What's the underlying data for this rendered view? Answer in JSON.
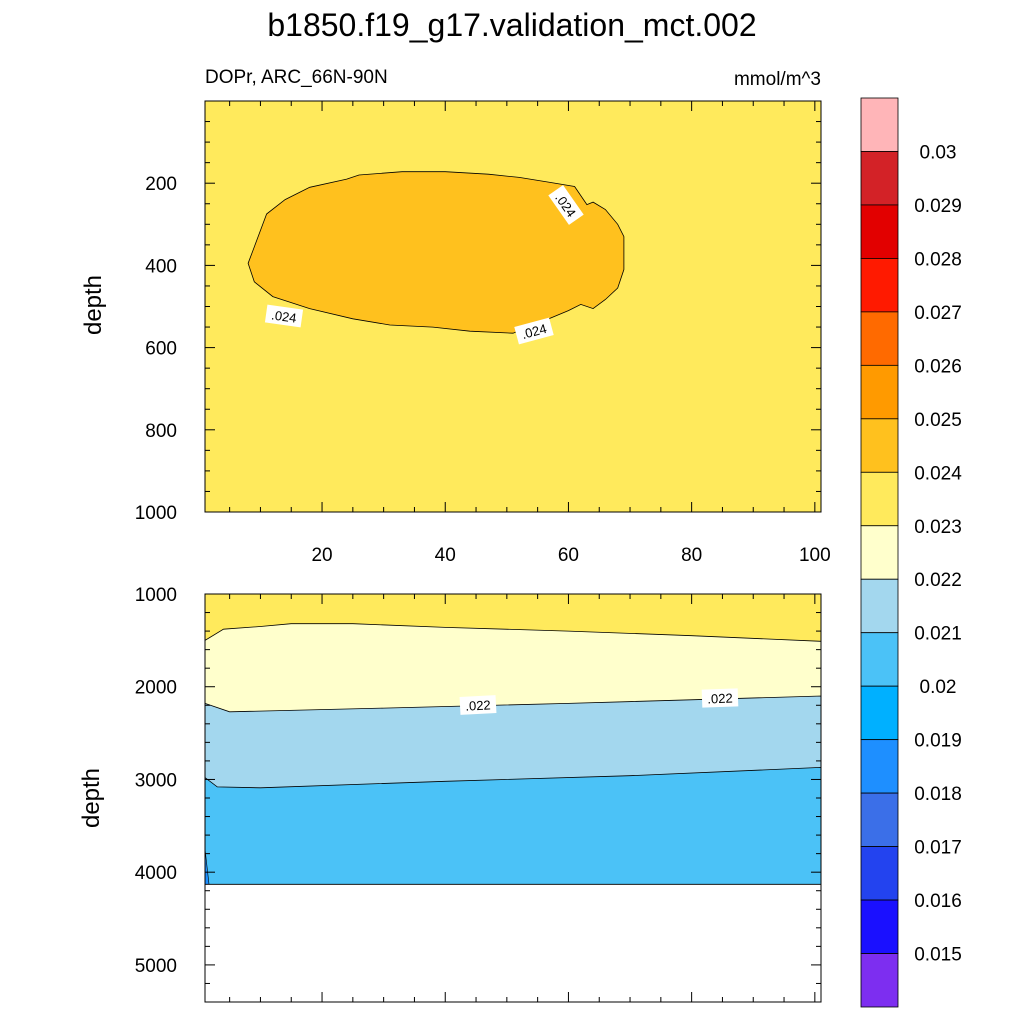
{
  "title": "b1850.f19_g17.validation_mct.002",
  "subtitle_left": "DOPr, ARC_66N-90N",
  "subtitle_right": "mmol/m^3",
  "chart_data": [
    {
      "type": "contour",
      "panel": "top",
      "xlabel": "",
      "ylabel": "depth",
      "xlim": [
        1,
        101
      ],
      "ylim": [
        1000,
        0
      ],
      "x_ticks": [
        "20",
        "40",
        "60",
        "80",
        "100"
      ],
      "y_ticks": [
        "200",
        "400",
        "600",
        "800",
        "1000"
      ],
      "background_value_range": [
        0.023,
        0.024
      ],
      "contour_labels": [
        ".024",
        ".024",
        ".024"
      ],
      "regions": [
        {
          "value_range": [
            0.024,
            0.025
          ],
          "boundary": [
            [
              11,
              275
            ],
            [
              14,
              240
            ],
            [
              18,
              210
            ],
            [
              24,
              190
            ],
            [
              26,
              180
            ],
            [
              33,
              172
            ],
            [
              40,
              172
            ],
            [
              47,
              178
            ],
            [
              52,
              186
            ],
            [
              57,
              198
            ],
            [
              61,
              208
            ],
            [
              63,
              252
            ],
            [
              64,
              246
            ],
            [
              66,
              264
            ],
            [
              68,
              300
            ],
            [
              69,
              330
            ],
            [
              69,
              410
            ],
            [
              68,
              455
            ],
            [
              66,
              483
            ],
            [
              64,
              505
            ],
            [
              62,
              495
            ],
            [
              60,
              510
            ],
            [
              56,
              535
            ],
            [
              51,
              565
            ],
            [
              44,
              560
            ],
            [
              38,
              550
            ],
            [
              31,
              545
            ],
            [
              25,
              530
            ],
            [
              18,
              505
            ],
            [
              12,
              476
            ],
            [
              9,
              440
            ],
            [
              8,
              395
            ],
            [
              9,
              355
            ]
          ]
        }
      ]
    },
    {
      "type": "contour",
      "panel": "bottom",
      "xlabel": "",
      "ylabel": "depth",
      "xlim": [
        1,
        101
      ],
      "ylim": [
        5400,
        1000
      ],
      "y_ticks": [
        "1000",
        "2000",
        "3000",
        "4000",
        "5000"
      ],
      "ocean_bottom_depth": 4130,
      "contour_labels": [
        ".022",
        ".022"
      ],
      "bands": [
        {
          "value_range": [
            0.023,
            0.024
          ],
          "top": [
            [
              1,
              1000
            ],
            [
              101,
              1000
            ]
          ]
        },
        {
          "value_range": [
            0.022,
            0.023
          ],
          "top": [
            [
              1,
              1500
            ],
            [
              4,
              1380
            ],
            [
              10,
              1350
            ],
            [
              15,
              1320
            ],
            [
              25,
              1320
            ],
            [
              40,
              1360
            ],
            [
              60,
              1400
            ],
            [
              80,
              1450
            ],
            [
              101,
              1510
            ]
          ]
        },
        {
          "value_range": [
            0.021,
            0.022
          ],
          "top": [
            [
              1,
              2180
            ],
            [
              5,
              2270
            ],
            [
              30,
              2230
            ],
            [
              60,
              2180
            ],
            [
              101,
              2100
            ]
          ]
        },
        {
          "value_range": [
            0.02,
            0.021
          ],
          "top": [
            [
              1,
              2980
            ],
            [
              3,
              3080
            ],
            [
              10,
              3090
            ],
            [
              40,
              3020
            ],
            [
              70,
              2960
            ],
            [
              101,
              2870
            ]
          ]
        }
      ]
    }
  ],
  "colorbar": {
    "labels": [
      "0.03",
      "0.029",
      "0.028",
      "0.027",
      "0.026",
      "0.025",
      "0.024",
      "0.023",
      "0.022",
      "0.021",
      "0.02",
      "0.019",
      "0.018",
      "0.017",
      "0.016",
      "0.015"
    ],
    "colors": [
      "#ffb5b8",
      "#d32227",
      "#e20000",
      "#ff1a00",
      "#ff6a00",
      "#ff9a00",
      "#ffc11e",
      "#ffea5c",
      "#ffffcc",
      "#a3d7ee",
      "#4bc2f7",
      "#00b0ff",
      "#1e8fff",
      "#3b6fe8",
      "#2343ef",
      "#1a10ff",
      "#7d2ef0"
    ]
  }
}
